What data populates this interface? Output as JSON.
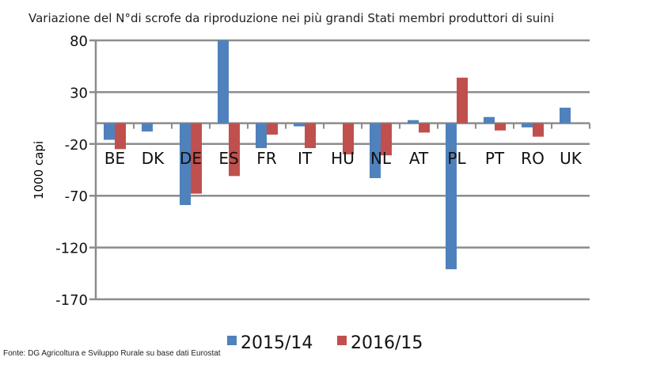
{
  "chart_data": {
    "type": "bar",
    "title": "Variazione del N°di scrofe da riproduzione nei più grandi Stati membri produttori di suini",
    "xlabel": "",
    "ylabel": "1000 capi",
    "ylim": [
      -170,
      80
    ],
    "yticks": [
      80,
      30,
      -20,
      -70,
      -120,
      -170
    ],
    "grid": true,
    "legend": "bottom",
    "categories": [
      "BE",
      "DK",
      "DE",
      "ES",
      "FR",
      "IT",
      "HU",
      "NL",
      "AT",
      "PL",
      "PT",
      "RO",
      "UK"
    ],
    "series": [
      {
        "name": "2015/14",
        "color": "#4F81BD",
        "values": [
          -16,
          -8,
          -79,
          80,
          -24,
          -3,
          null,
          -53,
          3,
          -141,
          6,
          -4,
          15
        ]
      },
      {
        "name": "2016/15",
        "color": "#C0504D",
        "values": [
          -25,
          null,
          -68,
          -51,
          -11,
          -24,
          -30,
          -31,
          -9,
          44,
          -7,
          -13,
          null
        ]
      }
    ],
    "source": "Fonte: DG Agricoltura e Sviluppo Rurale su base dati Eurostat"
  }
}
